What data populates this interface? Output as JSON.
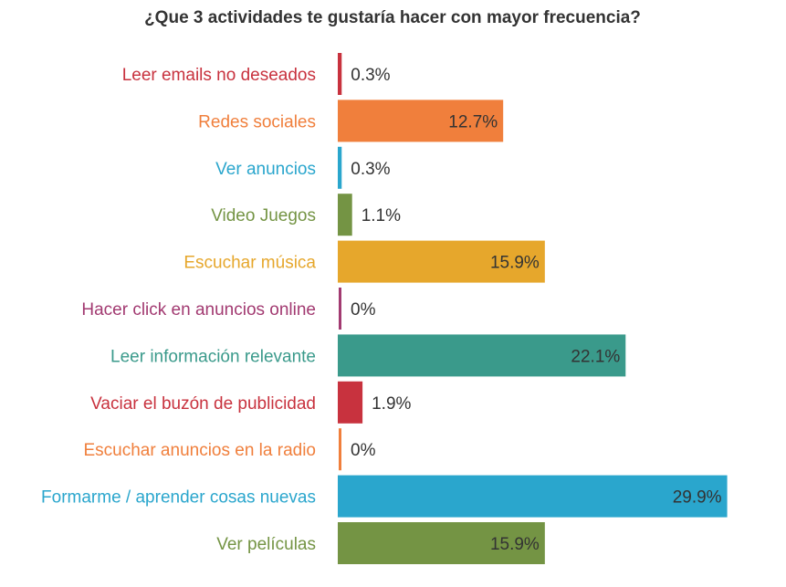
{
  "chart_data": {
    "type": "bar",
    "orientation": "horizontal",
    "title": "¿Que 3 actividades te gustaría hacer con mayor frecuencia?",
    "categories": [
      "Leer emails no deseados",
      "Redes sociales",
      "Ver anuncios",
      "Video Juegos",
      "Escuchar música",
      "Hacer click en anuncios online",
      "Leer información relevante",
      "Vaciar el buzón de publicidad",
      "Escuchar anuncios en la radio",
      "Formarme / aprender cosas nuevas",
      "Ver películas"
    ],
    "values": [
      0.3,
      12.7,
      0.3,
      1.1,
      15.9,
      0,
      22.1,
      1.9,
      0,
      29.9,
      15.9
    ],
    "value_labels": [
      "0.3%",
      "12.7%",
      "0.3%",
      "1.1%",
      "15.9%",
      "0%",
      "22.1%",
      "1.9%",
      "0%",
      "29.9%",
      "15.9%"
    ],
    "colors": [
      "#c8323e",
      "#f07f3c",
      "#2aa6cd",
      "#749444",
      "#e6a72c",
      "#a23a71",
      "#3a9a8b",
      "#c8323e",
      "#f07f3c",
      "#2aa6cd",
      "#749444"
    ],
    "xlim": [
      0,
      30
    ],
    "grid": false,
    "legend": "none"
  }
}
